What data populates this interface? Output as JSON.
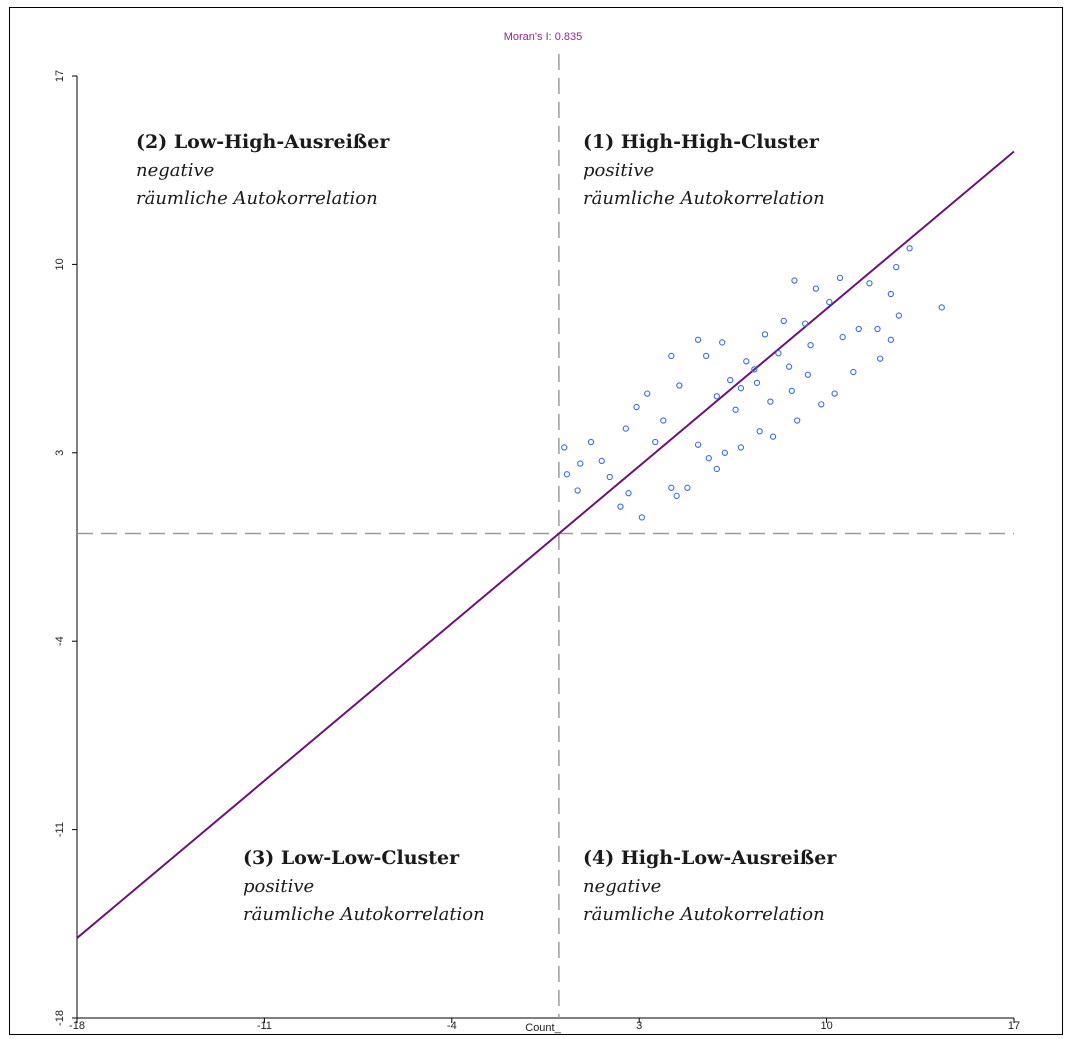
{
  "chart_data": {
    "type": "scatter",
    "title": "Moran's I: 0.835",
    "xlabel": "Count_",
    "ylabel": "",
    "xlim": [
      -18,
      17
    ],
    "ylim": [
      -18,
      17
    ],
    "xticks": [
      "-18",
      "-11",
      "-4",
      "3",
      "10",
      "17"
    ],
    "yticks": [
      "-18",
      "-11",
      "-4",
      "3",
      "10",
      "17"
    ],
    "reference_lines": {
      "x": 0,
      "y": 0,
      "style": "dashed"
    },
    "regression": {
      "slope": 0.835,
      "intercept": 0
    },
    "grid": false,
    "legend": "none",
    "colors": {
      "points": "#3a6fd8",
      "regression": "#6a1478",
      "reference": "#9a9a9a",
      "stat": "#8c2a8c"
    },
    "quadrants": [
      {
        "key": "q1",
        "title": "(1) High-High-Cluster",
        "line1": "positive",
        "line2": "räumliche Autokorrelation"
      },
      {
        "key": "q2",
        "title": "(2) Low-High-Ausreißer",
        "line1": "negative",
        "line2": "räumliche Autokorrelation"
      },
      {
        "key": "q3",
        "title": "(3) Low-Low-Cluster",
        "line1": "positive",
        "line2": "räumliche Autokorrelation"
      },
      {
        "key": "q4",
        "title": "(4) High-Low-Ausreißer",
        "line1": "negative",
        "line2": "räumliche Autokorrelation"
      }
    ],
    "points": [
      [
        13.1,
        10.6
      ],
      [
        14.3,
        8.4
      ],
      [
        12.6,
        9.9
      ],
      [
        10.5,
        9.5
      ],
      [
        9.6,
        9.1
      ],
      [
        8.8,
        9.4
      ],
      [
        12.4,
        8.9
      ],
      [
        11.2,
        7.6
      ],
      [
        12.4,
        7.2
      ],
      [
        12.0,
        6.5
      ],
      [
        11.0,
        6.0
      ],
      [
        10.3,
        5.2
      ],
      [
        9.8,
        4.8
      ],
      [
        8.9,
        4.2
      ],
      [
        8.0,
        3.6
      ],
      [
        7.5,
        3.8
      ],
      [
        6.8,
        3.2
      ],
      [
        6.2,
        3.0
      ],
      [
        5.9,
        2.4
      ],
      [
        4.8,
        1.7
      ],
      [
        4.2,
        1.7
      ],
      [
        6.6,
        4.6
      ],
      [
        7.3,
        6.1
      ],
      [
        9.2,
        7.8
      ],
      [
        8.6,
        6.2
      ],
      [
        10.1,
        8.6
      ],
      [
        11.6,
        9.3
      ],
      [
        12.7,
        8.1
      ],
      [
        5.9,
        5.1
      ],
      [
        2.9,
        4.7
      ],
      [
        4.5,
        5.5
      ],
      [
        3.6,
        3.4
      ],
      [
        5.5,
        6.6
      ],
      [
        6.1,
        7.1
      ],
      [
        5.2,
        7.2
      ],
      [
        4.2,
        6.6
      ],
      [
        3.3,
        5.2
      ],
      [
        1.2,
        3.4
      ],
      [
        0.8,
        2.6
      ],
      [
        0.3,
        2.2
      ],
      [
        0.2,
        3.2
      ],
      [
        0.7,
        1.6
      ],
      [
        2.3,
        1.0
      ],
      [
        3.1,
        0.6
      ],
      [
        4.4,
        1.4
      ],
      [
        6.8,
        5.4
      ],
      [
        7.4,
        5.6
      ],
      [
        8.4,
        7.9
      ],
      [
        7.7,
        7.4
      ],
      [
        9.4,
        7.0
      ],
      [
        10.6,
        7.3
      ],
      [
        11.9,
        7.6
      ],
      [
        8.2,
        6.7
      ],
      [
        7.0,
        6.4
      ],
      [
        6.4,
        5.7
      ],
      [
        3.9,
        4.2
      ],
      [
        2.5,
        3.9
      ],
      [
        1.6,
        2.7
      ],
      [
        1.9,
        2.1
      ],
      [
        2.6,
        1.5
      ],
      [
        5.2,
        3.3
      ],
      [
        5.6,
        2.8
      ],
      [
        7.9,
        4.9
      ],
      [
        8.7,
        5.3
      ],
      [
        9.3,
        5.9
      ]
    ]
  }
}
